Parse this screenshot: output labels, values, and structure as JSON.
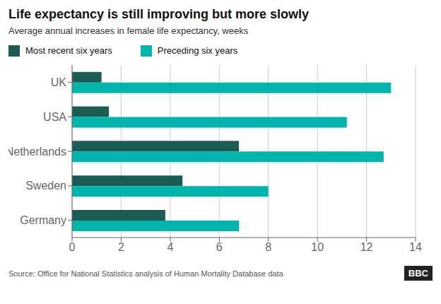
{
  "chart_data": {
    "type": "bar",
    "orientation": "horizontal",
    "title": "Life expectancy is still improving but more slowly",
    "subtitle": "Average annual increases in female life expectancy, weeks",
    "categories": [
      "UK",
      "USA",
      "Netherlands",
      "Sweden",
      "Germany"
    ],
    "series": [
      {
        "name": "Most recent six years",
        "color": "#1a5c52",
        "values": [
          1.2,
          1.5,
          6.8,
          4.5,
          3.8
        ]
      },
      {
        "name": "Preceding six years",
        "color": "#00b5ad",
        "values": [
          13.0,
          11.2,
          12.7,
          8.0,
          6.8
        ]
      }
    ],
    "xlim": [
      0,
      14
    ],
    "xticks": [
      0,
      2,
      4,
      6,
      8,
      10,
      12,
      14
    ],
    "grid": true,
    "legend": "top",
    "annotations": [
      "Source: Office for National Statistics analysis of Human Mortality Database data",
      "BBC"
    ]
  }
}
